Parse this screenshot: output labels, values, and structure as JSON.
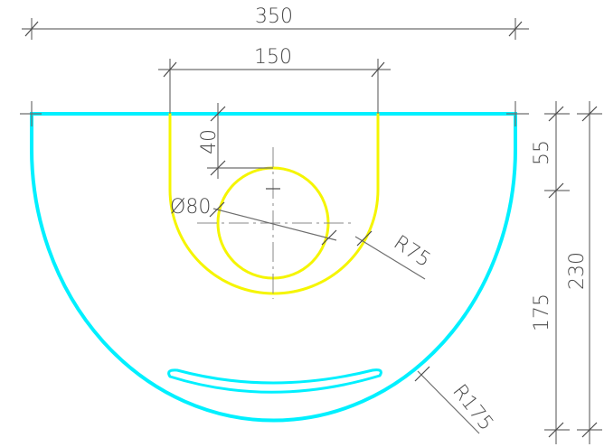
{
  "colors": {
    "outer_profile": "#00f0ff",
    "inner_cutout": "#f5f500",
    "dimension_lines": "#6e6e6e"
  },
  "dimensions": {
    "overall_width": "350",
    "inner_width": "150",
    "offset_40": "40",
    "hole_diameter": "Ø80",
    "inner_radius": "R75",
    "outer_radius": "R175",
    "top_height": "55",
    "lower_height": "175",
    "total_height": "230"
  }
}
